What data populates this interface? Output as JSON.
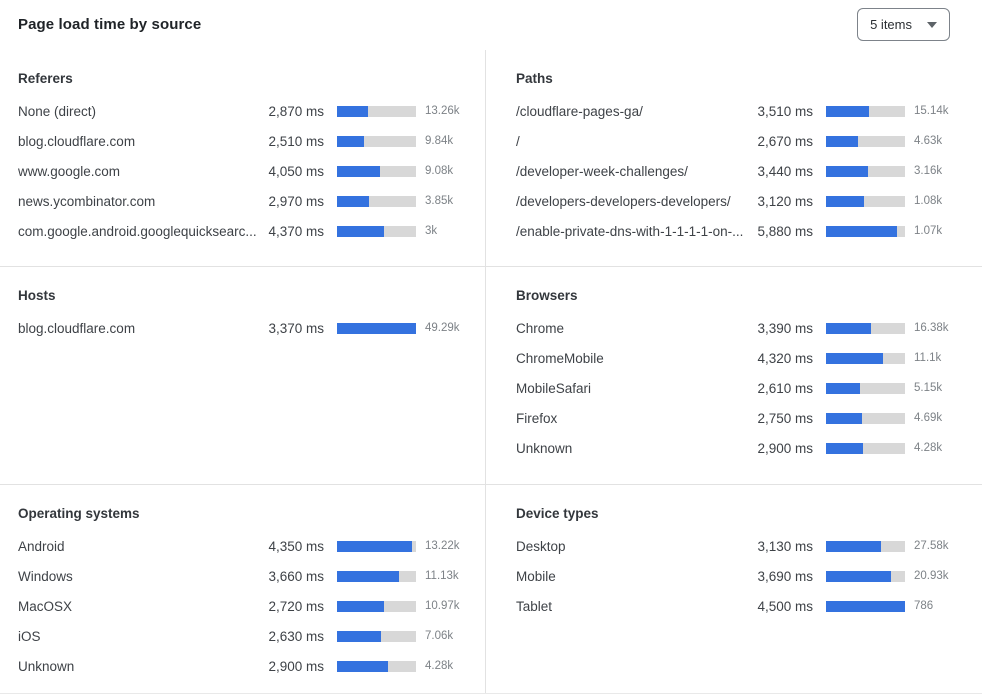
{
  "header": {
    "title": "Page load time by source",
    "items_selector": {
      "value": "5 items"
    }
  },
  "icons": {
    "dropdown_caret": "chevron-down"
  },
  "colors": {
    "bar_fill": "#3472df",
    "bar_track": "#d8d8d8",
    "divider": "#e2e2e2"
  },
  "panels": [
    {
      "id": "referers",
      "title": "Referers",
      "rows": [
        {
          "label": "None (direct)",
          "ms": "2,870 ms",
          "count": "13.26k",
          "bar_pct": 39
        },
        {
          "label": "blog.cloudflare.com",
          "ms": "2,510 ms",
          "count": "9.84k",
          "bar_pct": 34
        },
        {
          "label": "www.google.com",
          "ms": "4,050 ms",
          "count": "9.08k",
          "bar_pct": 55
        },
        {
          "label": "news.ycombinator.com",
          "ms": "2,970 ms",
          "count": "3.85k",
          "bar_pct": 41
        },
        {
          "label": "com.google.android.googlequicksearc...",
          "ms": "4,370 ms",
          "count": "3k",
          "bar_pct": 60
        }
      ]
    },
    {
      "id": "paths",
      "title": "Paths",
      "rows": [
        {
          "label": "/cloudflare-pages-ga/",
          "ms": "3,510 ms",
          "count": "15.14k",
          "bar_pct": 55
        },
        {
          "label": "/",
          "ms": "2,670 ms",
          "count": "4.63k",
          "bar_pct": 41
        },
        {
          "label": "/developer-week-challenges/",
          "ms": "3,440 ms",
          "count": "3.16k",
          "bar_pct": 53
        },
        {
          "label": "/developers-developers-developers/",
          "ms": "3,120 ms",
          "count": "1.08k",
          "bar_pct": 48
        },
        {
          "label": "/enable-private-dns-with-1-1-1-1-on-...",
          "ms": "5,880 ms",
          "count": "1.07k",
          "bar_pct": 90
        }
      ]
    },
    {
      "id": "hosts",
      "title": "Hosts",
      "rows": [
        {
          "label": "blog.cloudflare.com",
          "ms": "3,370 ms",
          "count": "49.29k",
          "bar_pct": 100
        }
      ]
    },
    {
      "id": "browsers",
      "title": "Browsers",
      "rows": [
        {
          "label": "Chrome",
          "ms": "3,390 ms",
          "count": "16.38k",
          "bar_pct": 57
        },
        {
          "label": "ChromeMobile",
          "ms": "4,320 ms",
          "count": "11.1k",
          "bar_pct": 72
        },
        {
          "label": "MobileSafari",
          "ms": "2,610 ms",
          "count": "5.15k",
          "bar_pct": 43
        },
        {
          "label": "Firefox",
          "ms": "2,750 ms",
          "count": "4.69k",
          "bar_pct": 45
        },
        {
          "label": "Unknown",
          "ms": "2,900 ms",
          "count": "4.28k",
          "bar_pct": 47
        }
      ]
    },
    {
      "id": "operating-systems",
      "title": "Operating systems",
      "rows": [
        {
          "label": "Android",
          "ms": "4,350 ms",
          "count": "13.22k",
          "bar_pct": 95
        },
        {
          "label": "Windows",
          "ms": "3,660 ms",
          "count": "11.13k",
          "bar_pct": 79
        },
        {
          "label": "MacOSX",
          "ms": "2,720 ms",
          "count": "10.97k",
          "bar_pct": 59
        },
        {
          "label": "iOS",
          "ms": "2,630 ms",
          "count": "7.06k",
          "bar_pct": 56
        },
        {
          "label": "Unknown",
          "ms": "2,900 ms",
          "count": "4.28k",
          "bar_pct": 64
        }
      ]
    },
    {
      "id": "device-types",
      "title": "Device types",
      "rows": [
        {
          "label": "Desktop",
          "ms": "3,130 ms",
          "count": "27.58k",
          "bar_pct": 70
        },
        {
          "label": "Mobile",
          "ms": "3,690 ms",
          "count": "20.93k",
          "bar_pct": 82
        },
        {
          "label": "Tablet",
          "ms": "4,500 ms",
          "count": "786",
          "bar_pct": 100
        }
      ]
    }
  ],
  "chart_data": [
    {
      "type": "bar",
      "title": "Referers",
      "unit": "ms",
      "categories": [
        "None (direct)",
        "blog.cloudflare.com",
        "www.google.com",
        "news.ycombinator.com",
        "com.google.android.googlequicksearc..."
      ],
      "values": [
        2870,
        2510,
        4050,
        2970,
        4370
      ],
      "counts": [
        "13.26k",
        "9.84k",
        "9.08k",
        "3.85k",
        "3k"
      ]
    },
    {
      "type": "bar",
      "title": "Paths",
      "unit": "ms",
      "categories": [
        "/cloudflare-pages-ga/",
        "/",
        "/developer-week-challenges/",
        "/developers-developers-developers/",
        "/enable-private-dns-with-1-1-1-1-on-..."
      ],
      "values": [
        3510,
        2670,
        3440,
        3120,
        5880
      ],
      "counts": [
        "15.14k",
        "4.63k",
        "3.16k",
        "1.08k",
        "1.07k"
      ]
    },
    {
      "type": "bar",
      "title": "Hosts",
      "unit": "ms",
      "categories": [
        "blog.cloudflare.com"
      ],
      "values": [
        3370
      ],
      "counts": [
        "49.29k"
      ]
    },
    {
      "type": "bar",
      "title": "Browsers",
      "unit": "ms",
      "categories": [
        "Chrome",
        "ChromeMobile",
        "MobileSafari",
        "Firefox",
        "Unknown"
      ],
      "values": [
        3390,
        4320,
        2610,
        2750,
        2900
      ],
      "counts": [
        "16.38k",
        "11.1k",
        "5.15k",
        "4.69k",
        "4.28k"
      ]
    },
    {
      "type": "bar",
      "title": "Operating systems",
      "unit": "ms",
      "categories": [
        "Android",
        "Windows",
        "MacOSX",
        "iOS",
        "Unknown"
      ],
      "values": [
        4350,
        3660,
        2720,
        2630,
        2900
      ],
      "counts": [
        "13.22k",
        "11.13k",
        "10.97k",
        "7.06k",
        "4.28k"
      ]
    },
    {
      "type": "bar",
      "title": "Device types",
      "unit": "ms",
      "categories": [
        "Desktop",
        "Mobile",
        "Tablet"
      ],
      "values": [
        3130,
        3690,
        4500
      ],
      "counts": [
        "27.58k",
        "20.93k",
        "786"
      ]
    }
  ]
}
